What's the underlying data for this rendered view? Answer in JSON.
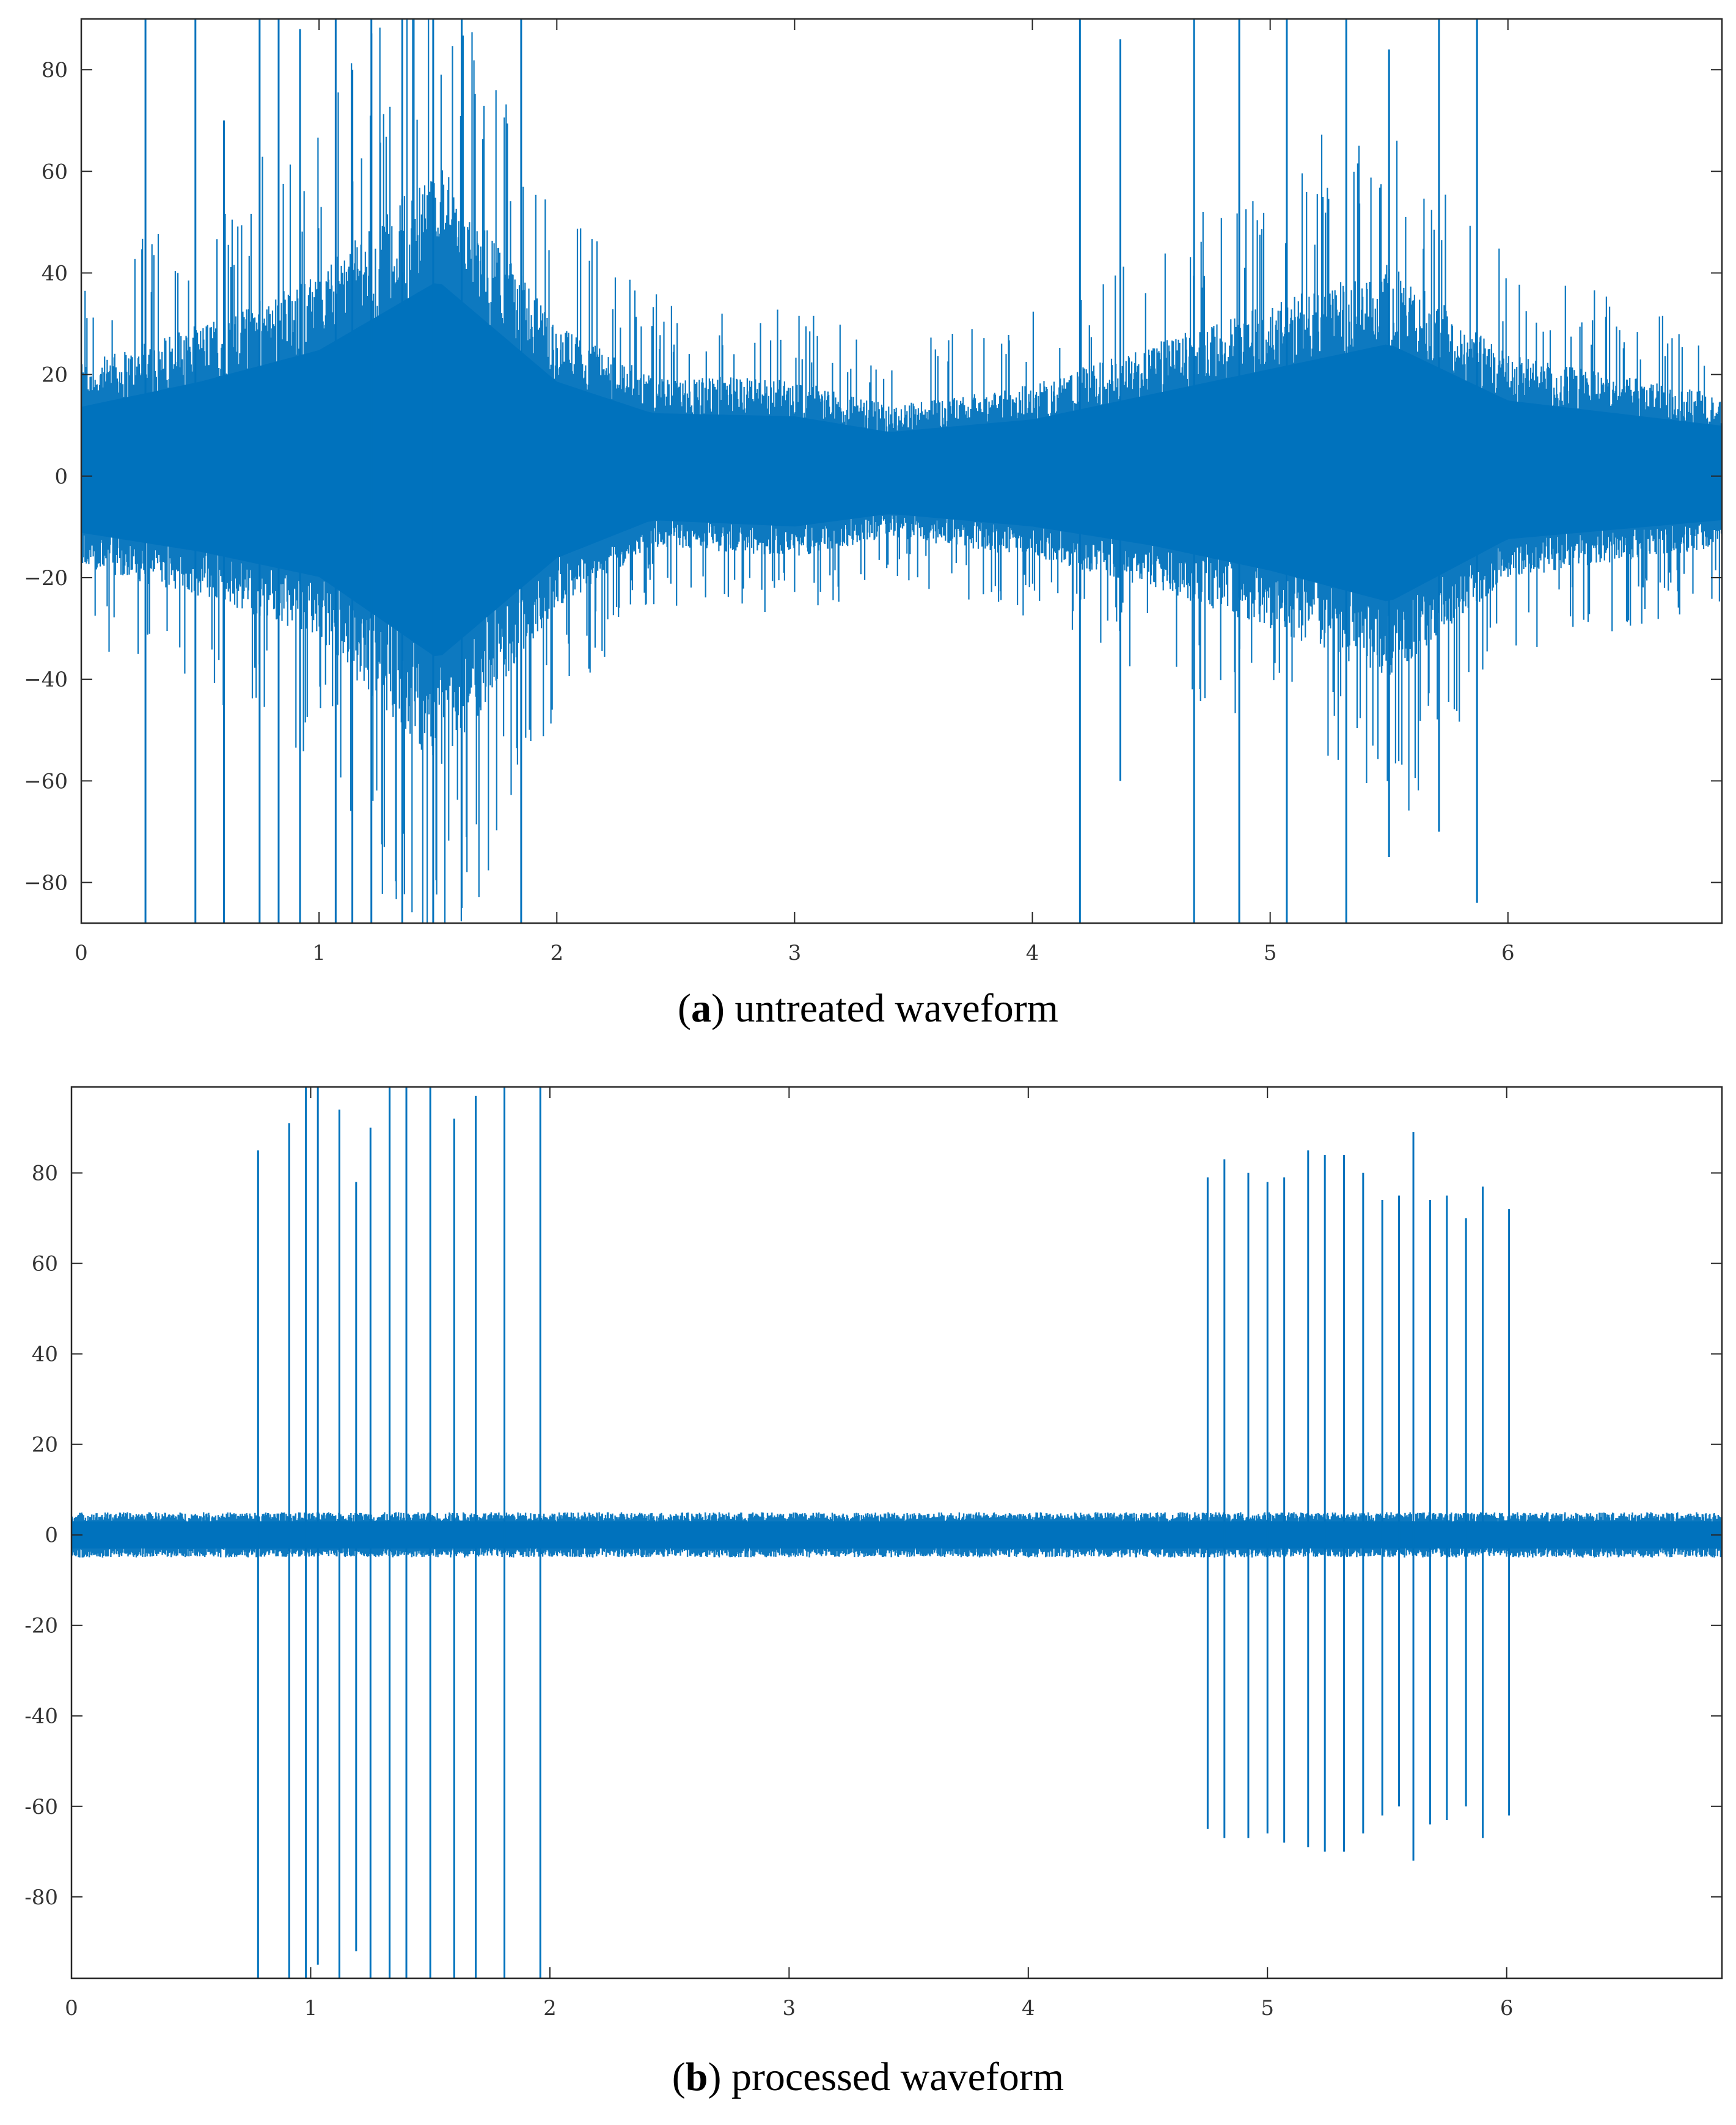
{
  "colors": {
    "line": "#0072bd",
    "axis": "#262626"
  },
  "chart_data": [
    {
      "id": "a",
      "type": "line",
      "title": "",
      "caption_letter": "a",
      "caption_text": " untreated waveform",
      "xlabel": "",
      "ylabel": "",
      "xlim": [
        0,
        6.9
      ],
      "ylim": [
        -88,
        90
      ],
      "xticks": [
        "0",
        "1",
        "2",
        "3",
        "4",
        "5",
        "6"
      ],
      "yticks": [
        "80",
        "60",
        "40",
        "20",
        "0",
        "−20",
        "−40",
        "−60",
        "−80"
      ],
      "ytick_values": [
        80,
        60,
        40,
        20,
        0,
        -20,
        -40,
        -60,
        -80
      ],
      "xtick_values": [
        0,
        1,
        2,
        3,
        4,
        5,
        6
      ],
      "series": [
        {
          "name": "signal",
          "description": "dense noisy signal, amplitude envelope (data units)",
          "envelope": [
            {
              "t": 0.0,
              "hi": 22,
              "lo": -18
            },
            {
              "t": 0.5,
              "hi": 30,
              "lo": -24
            },
            {
              "t": 1.0,
              "hi": 40,
              "lo": -32
            },
            {
              "t": 1.5,
              "hi": 62,
              "lo": -58
            },
            {
              "t": 2.0,
              "hi": 30,
              "lo": -26
            },
            {
              "t": 2.4,
              "hi": 20,
              "lo": -14
            },
            {
              "t": 3.0,
              "hi": 19,
              "lo": -16
            },
            {
              "t": 3.4,
              "hi": 14,
              "lo": -12
            },
            {
              "t": 4.0,
              "hi": 18,
              "lo": -16
            },
            {
              "t": 4.5,
              "hi": 26,
              "lo": -22
            },
            {
              "t": 5.0,
              "hi": 34,
              "lo": -30
            },
            {
              "t": 5.5,
              "hi": 42,
              "lo": -40
            },
            {
              "t": 6.0,
              "hi": 24,
              "lo": -20
            },
            {
              "t": 6.9,
              "hi": 16,
              "lo": -14
            }
          ],
          "spikes": [
            {
              "t": 0.27,
              "hi": 90,
              "lo": -88
            },
            {
              "t": 0.48,
              "hi": 90,
              "lo": -88
            },
            {
              "t": 0.6,
              "hi": 70,
              "lo": -88
            },
            {
              "t": 0.75,
              "hi": 90,
              "lo": -88
            },
            {
              "t": 0.83,
              "hi": 90,
              "lo": -88
            },
            {
              "t": 0.92,
              "hi": 88,
              "lo": -88
            },
            {
              "t": 1.07,
              "hi": 90,
              "lo": -88
            },
            {
              "t": 1.14,
              "hi": 80,
              "lo": -88
            },
            {
              "t": 1.22,
              "hi": 90,
              "lo": -88
            },
            {
              "t": 1.35,
              "hi": 90,
              "lo": -88
            },
            {
              "t": 1.48,
              "hi": 90,
              "lo": -88
            },
            {
              "t": 1.6,
              "hi": 90,
              "lo": -85
            },
            {
              "t": 1.85,
              "hi": 90,
              "lo": -88
            },
            {
              "t": 4.2,
              "hi": 90,
              "lo": -88
            },
            {
              "t": 4.37,
              "hi": 86,
              "lo": -60
            },
            {
              "t": 4.68,
              "hi": 90,
              "lo": -88
            },
            {
              "t": 4.87,
              "hi": 90,
              "lo": -88
            },
            {
              "t": 5.07,
              "hi": 90,
              "lo": -88
            },
            {
              "t": 5.32,
              "hi": 90,
              "lo": -88
            },
            {
              "t": 5.5,
              "hi": 84,
              "lo": -75
            },
            {
              "t": 5.71,
              "hi": 90,
              "lo": -70
            },
            {
              "t": 5.87,
              "hi": 90,
              "lo": -84
            }
          ]
        }
      ]
    },
    {
      "id": "b",
      "type": "line",
      "title": "",
      "caption_letter": "b",
      "caption_text": " processed waveform",
      "xlabel": "",
      "ylabel": "",
      "xlim": [
        0,
        6.9
      ],
      "ylim": [
        -98,
        99
      ],
      "xticks": [
        "0",
        "1",
        "2",
        "3",
        "4",
        "5",
        "6"
      ],
      "yticks": [
        "80",
        "60",
        "40",
        "20",
        "0",
        "-20",
        "-40",
        "-60",
        "-80"
      ],
      "ytick_values": [
        80,
        60,
        40,
        20,
        0,
        -20,
        -40,
        -60,
        -80
      ],
      "xtick_values": [
        0,
        1,
        2,
        3,
        4,
        5,
        6
      ],
      "series": [
        {
          "name": "signal",
          "description": "denoised signal with baseline noise and discrete pulses",
          "baseline_amplitude": 5,
          "spikes": [
            {
              "t": 0.78,
              "hi": 85,
              "lo": -98
            },
            {
              "t": 0.91,
              "hi": 91,
              "lo": -98
            },
            {
              "t": 0.98,
              "hi": 99,
              "lo": -98
            },
            {
              "t": 1.03,
              "hi": 99,
              "lo": -95
            },
            {
              "t": 1.12,
              "hi": 94,
              "lo": -98
            },
            {
              "t": 1.19,
              "hi": 78,
              "lo": -92
            },
            {
              "t": 1.25,
              "hi": 90,
              "lo": -98
            },
            {
              "t": 1.33,
              "hi": 99,
              "lo": -98
            },
            {
              "t": 1.4,
              "hi": 99,
              "lo": -98
            },
            {
              "t": 1.5,
              "hi": 99,
              "lo": -98
            },
            {
              "t": 1.6,
              "hi": 92,
              "lo": -98
            },
            {
              "t": 1.69,
              "hi": 97,
              "lo": -98
            },
            {
              "t": 1.81,
              "hi": 99,
              "lo": -98
            },
            {
              "t": 1.96,
              "hi": 99,
              "lo": -98
            },
            {
              "t": 4.75,
              "hi": 79,
              "lo": -65
            },
            {
              "t": 4.82,
              "hi": 83,
              "lo": -67
            },
            {
              "t": 4.92,
              "hi": 80,
              "lo": -67
            },
            {
              "t": 5.0,
              "hi": 78,
              "lo": -66
            },
            {
              "t": 5.07,
              "hi": 79,
              "lo": -68
            },
            {
              "t": 5.17,
              "hi": 85,
              "lo": -69
            },
            {
              "t": 5.24,
              "hi": 84,
              "lo": -70
            },
            {
              "t": 5.32,
              "hi": 84,
              "lo": -70
            },
            {
              "t": 5.4,
              "hi": 80,
              "lo": -66
            },
            {
              "t": 5.48,
              "hi": 74,
              "lo": -62
            },
            {
              "t": 5.55,
              "hi": 75,
              "lo": -60
            },
            {
              "t": 5.61,
              "hi": 89,
              "lo": -72
            },
            {
              "t": 5.68,
              "hi": 74,
              "lo": -64
            },
            {
              "t": 5.75,
              "hi": 75,
              "lo": -63
            },
            {
              "t": 5.83,
              "hi": 70,
              "lo": -60
            },
            {
              "t": 5.9,
              "hi": 77,
              "lo": -67
            },
            {
              "t": 6.01,
              "hi": 72,
              "lo": -62
            }
          ]
        }
      ]
    }
  ]
}
